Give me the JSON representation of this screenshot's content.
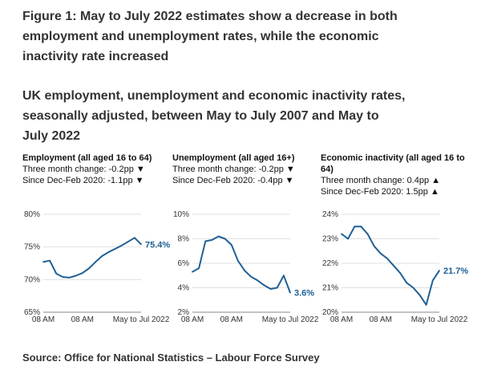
{
  "figure_title": "Figure 1: May to July 2022 estimates show a decrease in both employment and unemployment rates, while the economic inactivity rate increased",
  "chart_title": "UK employment, unemployment and economic inactivity rates, seasonally adjusted, between May to July 2007 and May to July 2022",
  "source": "Source: Office for National Statistics – Labour Force Survey",
  "line_color": "#206095",
  "chart_data": [
    {
      "type": "line",
      "title": "Employment (all aged 16 to 64)",
      "change_3m": "Three month change: -0.2pp ▼",
      "change_since": "Since Dec-Feb 2020: -1.1pp ▼",
      "y_ticks": [
        "80%",
        "75%",
        "70%",
        "65%"
      ],
      "ylim": [
        65,
        80
      ],
      "x_tick_labels": [
        "08 AM",
        "08 AM",
        "May to Jul 2022"
      ],
      "end_label": "75.4%",
      "x": [
        0,
        1,
        2,
        3,
        4,
        5,
        6,
        7,
        8,
        9,
        10,
        11,
        12,
        13,
        14,
        15
      ],
      "values": [
        72.7,
        72.9,
        70.9,
        70.4,
        70.3,
        70.6,
        71.0,
        71.7,
        72.7,
        73.6,
        74.2,
        74.7,
        75.2,
        75.8,
        76.4,
        75.4
      ]
    },
    {
      "type": "line",
      "title": "Unemployment (all aged 16+)",
      "change_3m": "Three month change: -0.2pp ▼",
      "change_since": "Since Dec-Feb 2020: -0.4pp ▼",
      "y_ticks": [
        "10%",
        "8%",
        "6%",
        "4%",
        "2%"
      ],
      "ylim": [
        2,
        10
      ],
      "x_tick_labels": [
        "08 AM",
        "08 AM",
        "May to Jul 2022"
      ],
      "end_label": "3.6%",
      "x": [
        0,
        1,
        2,
        3,
        4,
        5,
        6,
        7,
        8,
        9,
        10,
        11,
        12,
        13,
        14,
        15
      ],
      "values": [
        5.3,
        5.6,
        7.8,
        7.9,
        8.2,
        8.0,
        7.5,
        6.2,
        5.4,
        4.9,
        4.6,
        4.2,
        3.9,
        4.0,
        5.0,
        3.6
      ]
    },
    {
      "type": "line",
      "title": "Economic inactivity (all aged 16 to 64)",
      "change_3m": "Three month change: 0.4pp ▲",
      "change_since": "Since Dec-Feb 2020: 1.5pp ▲",
      "y_ticks": [
        "24%",
        "23%",
        "22%",
        "21%",
        "20%"
      ],
      "ylim": [
        20,
        24
      ],
      "x_tick_labels": [
        "08 AM",
        "08 AM",
        "May to Jul 2022"
      ],
      "end_label": "21.7%",
      "x": [
        0,
        1,
        2,
        3,
        4,
        5,
        6,
        7,
        8,
        9,
        10,
        11,
        12,
        13,
        14,
        15
      ],
      "values": [
        23.2,
        23.0,
        23.5,
        23.5,
        23.2,
        22.7,
        22.4,
        22.2,
        21.9,
        21.6,
        21.2,
        21.0,
        20.7,
        20.3,
        21.3,
        21.7
      ]
    }
  ]
}
